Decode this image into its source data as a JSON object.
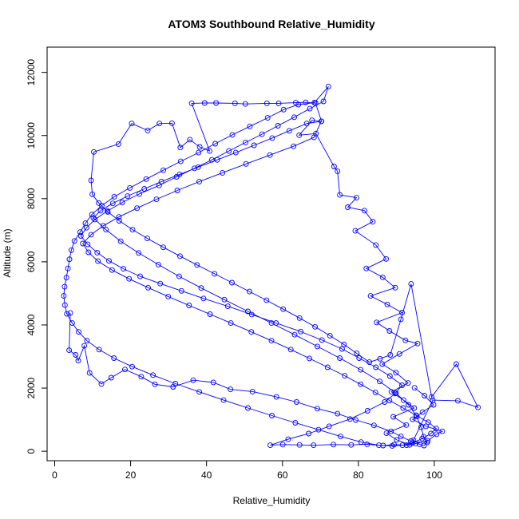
{
  "chart_data": {
    "type": "line",
    "title": "ATOM3 Southbound Relative_Humidity",
    "xlabel": "Relative_Humidity",
    "ylabel": "Altitude (m)",
    "xlim": [
      -2,
      116
    ],
    "ylim": [
      -300,
      12800
    ],
    "x_ticks": [
      0,
      20,
      40,
      60,
      80,
      100
    ],
    "y_ticks": [
      0,
      2000,
      4000,
      6000,
      8000,
      10000,
      12000
    ],
    "grid": false,
    "legend": "none",
    "series_color": "#0000ff",
    "marker": "open-circle",
    "series": [
      {
        "points": [
          [
            4.1,
            4380
          ],
          [
            3.8,
            3200
          ],
          [
            5.5,
            3050
          ],
          [
            6.2,
            2870
          ],
          [
            7.8,
            3340
          ],
          [
            9.2,
            2480
          ],
          [
            12.3,
            2130
          ],
          [
            14.9,
            2330
          ],
          [
            18.5,
            2590
          ],
          [
            22.8,
            2360
          ],
          [
            26.4,
            2120
          ],
          [
            31.2,
            2040
          ],
          [
            36.5,
            2250
          ],
          [
            41.8,
            2180
          ],
          [
            46.3,
            1960
          ],
          [
            52.1,
            1890
          ],
          [
            58.4,
            1720
          ],
          [
            63.7,
            1560
          ],
          [
            69.2,
            1350
          ],
          [
            74.5,
            1190
          ],
          [
            79.3,
            990
          ],
          [
            84.1,
            820
          ],
          [
            88.6,
            630
          ],
          [
            91.2,
            470
          ],
          [
            93.8,
            320
          ],
          [
            95.1,
            250
          ],
          [
            92.7,
            190
          ],
          [
            89.4,
            210
          ],
          [
            86.5,
            180
          ],
          [
            82.3,
            220
          ],
          [
            78.1,
            200
          ],
          [
            73.4,
            210
          ],
          [
            68.2,
            190
          ],
          [
            64.5,
            200
          ],
          [
            60.1,
            210
          ],
          [
            56.8,
            190
          ],
          [
            61.5,
            380
          ],
          [
            66.9,
            560
          ],
          [
            72.3,
            790
          ],
          [
            77.8,
            1020
          ],
          [
            82.4,
            1280
          ],
          [
            86.9,
            1560
          ],
          [
            89.7,
            1830
          ],
          [
            91.5,
            2090
          ],
          [
            88.3,
            2380
          ],
          [
            84.6,
            2660
          ],
          [
            80.2,
            2950
          ],
          [
            75.7,
            3240
          ],
          [
            70.4,
            3520
          ],
          [
            64.8,
            3790
          ],
          [
            58.3,
            4060
          ],
          [
            51.9,
            4330
          ],
          [
            45.6,
            4590
          ],
          [
            39.2,
            4840
          ],
          [
            33.4,
            5080
          ],
          [
            27.8,
            5310
          ],
          [
            22.5,
            5540
          ],
          [
            18.1,
            5780
          ],
          [
            14.3,
            6030
          ],
          [
            11.2,
            6290
          ],
          [
            8.7,
            6550
          ],
          [
            6.9,
            6820
          ],
          [
            8.4,
            7080
          ],
          [
            10.6,
            7340
          ],
          [
            13.9,
            7610
          ],
          [
            17.8,
            7880
          ],
          [
            22.3,
            8150
          ],
          [
            27.5,
            8420
          ],
          [
            32.1,
            8690
          ],
          [
            36.8,
            8960
          ],
          [
            41.4,
            9230
          ],
          [
            45.9,
            9510
          ],
          [
            50.3,
            9780
          ],
          [
            54.6,
            10040
          ],
          [
            58.8,
            10310
          ],
          [
            63.1,
            10580
          ],
          [
            67.2,
            10850
          ],
          [
            70.8,
            11080
          ],
          [
            72.1,
            11550
          ],
          [
            68.4,
            11040
          ],
          [
            64.2,
            10980
          ],
          [
            60.3,
            10820
          ],
          [
            56.1,
            10560
          ],
          [
            51.4,
            10290
          ],
          [
            46.8,
            10020
          ],
          [
            42.3,
            9740
          ],
          [
            37.9,
            9460
          ],
          [
            33.2,
            9180
          ],
          [
            28.6,
            8900
          ],
          [
            24.1,
            8620
          ],
          [
            19.8,
            8340
          ],
          [
            15.7,
            8060
          ],
          [
            12.4,
            7780
          ],
          [
            9.8,
            7500
          ],
          [
            8.1,
            7220
          ],
          [
            6.7,
            6940
          ],
          [
            5.2,
            6660
          ],
          [
            4.4,
            6370
          ],
          [
            3.9,
            6080
          ],
          [
            3.5,
            5790
          ],
          [
            3.1,
            5500
          ],
          [
            2.6,
            5210
          ],
          [
            2.4,
            4920
          ],
          [
            2.7,
            4630
          ],
          [
            3.2,
            4350
          ],
          [
            4.6,
            4060
          ],
          [
            6.3,
            3780
          ],
          [
            8.5,
            3500
          ],
          [
            11.7,
            3220
          ],
          [
            15.6,
            2950
          ],
          [
            20.4,
            2680
          ],
          [
            25.9,
            2410
          ],
          [
            31.8,
            2140
          ],
          [
            38.1,
            1880
          ],
          [
            44.5,
            1620
          ],
          [
            50.9,
            1370
          ],
          [
            57.2,
            1130
          ],
          [
            63.4,
            900
          ],
          [
            69.5,
            680
          ],
          [
            75.3,
            470
          ],
          [
            80.7,
            290
          ],
          [
            85.4,
            190
          ],
          [
            88.9,
            170
          ],
          [
            91.6,
            190
          ],
          [
            94.2,
            260
          ],
          [
            96.8,
            400
          ],
          [
            99.1,
            560
          ],
          [
            100.5,
            720
          ],
          [
            98.4,
            920
          ],
          [
            95.2,
            1140
          ],
          [
            91.8,
            1370
          ],
          [
            88.2,
            1610
          ],
          [
            84.5,
            1860
          ],
          [
            80.6,
            2120
          ],
          [
            76.4,
            2390
          ],
          [
            71.9,
            2660
          ],
          [
            67.1,
            2940
          ],
          [
            62.2,
            3220
          ],
          [
            57.1,
            3500
          ],
          [
            51.8,
            3780
          ],
          [
            46.4,
            4060
          ],
          [
            40.9,
            4340
          ],
          [
            35.4,
            4620
          ],
          [
            29.9,
            4900
          ],
          [
            24.6,
            5180
          ],
          [
            19.6,
            5460
          ],
          [
            15.1,
            5740
          ],
          [
            11.4,
            6020
          ],
          [
            8.9,
            6300
          ],
          [
            7.4,
            6580
          ],
          [
            9.6,
            6860
          ],
          [
            12.8,
            7140
          ],
          [
            16.9,
            7420
          ],
          [
            21.7,
            7700
          ],
          [
            26.8,
            7980
          ],
          [
            32.3,
            8260
          ],
          [
            38.1,
            8540
          ],
          [
            44.2,
            8820
          ],
          [
            50.4,
            9100
          ],
          [
            56.7,
            9380
          ],
          [
            62.9,
            9660
          ],
          [
            68.3,
            9940
          ],
          [
            70.2,
            10450
          ],
          [
            66.4,
            10380
          ],
          [
            61.8,
            10150
          ],
          [
            57.3,
            9920
          ],
          [
            52.5,
            9690
          ],
          [
            47.7,
            9460
          ],
          [
            42.8,
            9230
          ],
          [
            37.8,
            9000
          ],
          [
            32.9,
            8770
          ],
          [
            28.1,
            8540
          ],
          [
            23.6,
            8310
          ],
          [
            19.2,
            8080
          ],
          [
            15.3,
            7850
          ],
          [
            12.1,
            7620
          ],
          [
            10.2,
            7390
          ],
          [
            13.5,
            7020
          ],
          [
            17.4,
            6650
          ],
          [
            22.1,
            6280
          ],
          [
            27.3,
            5910
          ],
          [
            32.8,
            5540
          ],
          [
            38.6,
            5170
          ],
          [
            44.7,
            4800
          ],
          [
            50.9,
            4430
          ],
          [
            57.1,
            4060
          ],
          [
            63.2,
            3690
          ],
          [
            69.2,
            3320
          ],
          [
            75.1,
            2950
          ],
          [
            80.6,
            2580
          ],
          [
            85.6,
            2210
          ],
          [
            89.9,
            1840
          ],
          [
            93.2,
            1470
          ],
          [
            95.4,
            1100
          ],
          [
            96.5,
            760
          ],
          [
            97.2,
            460
          ],
          [
            98.1,
            280
          ],
          [
            97.3,
            180
          ],
          [
            96.1,
            220
          ],
          [
            94.5,
            350
          ],
          [
            99.6,
            1620
          ],
          [
            106.2,
            1600
          ],
          [
            111.5,
            1390
          ],
          [
            105.8,
            2760
          ],
          [
            99.3,
            1720
          ],
          [
            93.9,
            5300
          ],
          [
            91.2,
            4180
          ],
          [
            88.4,
            3050
          ],
          [
            85.7,
            2930
          ],
          [
            82.9,
            2820
          ],
          [
            79.6,
            3100
          ],
          [
            76.2,
            3380
          ],
          [
            72.5,
            3660
          ],
          [
            68.6,
            3940
          ],
          [
            64.5,
            4220
          ],
          [
            60.2,
            4500
          ],
          [
            55.8,
            4780
          ],
          [
            51.3,
            5060
          ],
          [
            46.7,
            5340
          ],
          [
            42.1,
            5620
          ],
          [
            37.5,
            5900
          ],
          [
            33.0,
            6180
          ],
          [
            28.6,
            6460
          ],
          [
            24.4,
            6740
          ],
          [
            20.5,
            7020
          ],
          [
            17.0,
            7300
          ],
          [
            14.0,
            7580
          ],
          [
            11.6,
            7860
          ],
          [
            9.9,
            8140
          ],
          [
            9.6,
            8580
          ],
          [
            10.3,
            9480
          ],
          [
            16.8,
            9730
          ],
          [
            20.3,
            10380
          ],
          [
            24.5,
            10160
          ],
          [
            27.6,
            10380
          ],
          [
            30.9,
            10390
          ],
          [
            33.1,
            9620
          ],
          [
            35.6,
            9870
          ],
          [
            38.2,
            9640
          ],
          [
            40.8,
            9510
          ],
          [
            36.1,
            11020
          ],
          [
            39.5,
            11030
          ],
          [
            42.5,
            11030
          ],
          [
            47.5,
            11020
          ],
          [
            50.2,
            11000
          ],
          [
            55.9,
            11020
          ],
          [
            59.0,
            11020
          ],
          [
            63.5,
            11040
          ],
          [
            66.1,
            11050
          ],
          [
            68.7,
            11030
          ],
          [
            70.3,
            10450
          ],
          [
            67.8,
            10480
          ],
          [
            64.4,
            10010
          ],
          [
            68.8,
            10060
          ],
          [
            73.6,
            9020
          ],
          [
            74.5,
            8870
          ],
          [
            75.1,
            8120
          ],
          [
            79.5,
            8030
          ],
          [
            77.2,
            7730
          ],
          [
            81.6,
            7620
          ],
          [
            83.8,
            7270
          ],
          [
            79.2,
            6980
          ],
          [
            84.6,
            6530
          ],
          [
            87.3,
            6090
          ],
          [
            82.1,
            5790
          ],
          [
            86.4,
            5510
          ],
          [
            89.7,
            5180
          ],
          [
            83.2,
            4920
          ],
          [
            87.6,
            4650
          ],
          [
            91.5,
            4390
          ],
          [
            84.8,
            4080
          ],
          [
            88.2,
            3810
          ],
          [
            92.4,
            3510
          ],
          [
            95.6,
            3410
          ],
          [
            90.8,
            3080
          ],
          [
            86.3,
            2760
          ],
          [
            89.9,
            2490
          ],
          [
            93.1,
            2160
          ],
          [
            88.7,
            1880
          ],
          [
            91.9,
            1620
          ],
          [
            94.7,
            1370
          ],
          [
            89.2,
            1090
          ],
          [
            92.6,
            830
          ],
          [
            87.4,
            570
          ],
          [
            90.1,
            360
          ],
          [
            93.5,
            200
          ],
          [
            98.3,
            330
          ],
          [
            100.6,
            540
          ],
          [
            102.1,
            630
          ],
          [
            97.8,
            790
          ],
          [
            94.3,
            1010
          ],
          [
            96.9,
            1240
          ],
          [
            99.8,
            1470
          ],
          [
            97.4,
            1760
          ],
          [
            94.8,
            2010
          ]
        ]
      }
    ]
  }
}
